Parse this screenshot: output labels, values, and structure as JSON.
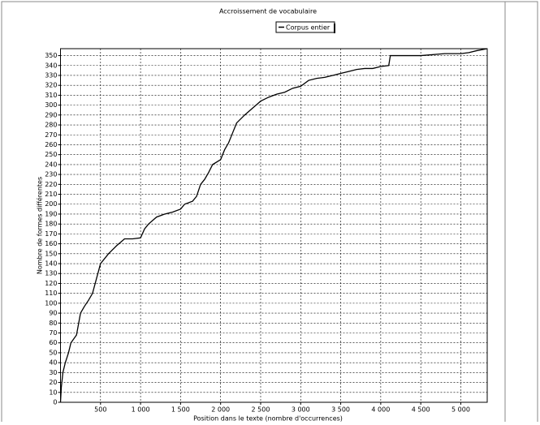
{
  "chart_data": {
    "type": "line",
    "title": "Accroissement de vocabulaire",
    "x_label": "Position dans le texte (nombre d'occurrences)",
    "y_label": "Nombre de formes différentes",
    "x": [
      0,
      10,
      30,
      60,
      100,
      130,
      200,
      250,
      300,
      350,
      400,
      450,
      500,
      550,
      600,
      700,
      800,
      900,
      1000,
      1050,
      1100,
      1200,
      1300,
      1400,
      1500,
      1550,
      1650,
      1700,
      1750,
      1800,
      1850,
      1900,
      2000,
      2050,
      2100,
      2150,
      2200,
      2300,
      2400,
      2500,
      2600,
      2700,
      2800,
      2900,
      3000,
      3100,
      3200,
      3300,
      3400,
      3500,
      3600,
      3700,
      3800,
      3900,
      4000,
      4100,
      4120,
      4500,
      4800,
      5000,
      5100,
      5200,
      5330
    ],
    "series": [
      {
        "name": "Corpus entier",
        "color": "#000000",
        "values": [
          0,
          15,
          30,
          40,
          50,
          60,
          68,
          90,
          97,
          103,
          110,
          125,
          140,
          145,
          150,
          158,
          165,
          165,
          166,
          175,
          180,
          187,
          190,
          192,
          195,
          200,
          203,
          208,
          220,
          225,
          232,
          240,
          245,
          255,
          262,
          272,
          282,
          290,
          297,
          304,
          308,
          311,
          313,
          317,
          319,
          325,
          327,
          328,
          330,
          332,
          334,
          336,
          337,
          337,
          339,
          340,
          350,
          350,
          352,
          352,
          353,
          355,
          357
        ]
      }
    ],
    "xlim": [
      0,
      5330
    ],
    "ylim": [
      0,
      357
    ],
    "xticks": [
      500,
      {
        "value": 1000,
        "label": "1 000"
      },
      {
        "value": 1500,
        "label": "1 500"
      },
      {
        "value": 2000,
        "label": "2 000"
      },
      {
        "value": 2500,
        "label": "2 500"
      },
      {
        "value": 3000,
        "label": "3 000"
      },
      {
        "value": 3500,
        "label": "3 500"
      },
      {
        "value": 4000,
        "label": "4 000"
      },
      {
        "value": 4500,
        "label": "4 500"
      },
      {
        "value": 5000,
        "label": "5 000"
      }
    ],
    "yticks": [
      0,
      10,
      20,
      30,
      40,
      50,
      60,
      70,
      80,
      90,
      100,
      110,
      120,
      130,
      140,
      150,
      160,
      170,
      180,
      190,
      200,
      210,
      220,
      230,
      240,
      250,
      260,
      270,
      280,
      290,
      300,
      310,
      320,
      330,
      340,
      350
    ],
    "grid": true
  }
}
